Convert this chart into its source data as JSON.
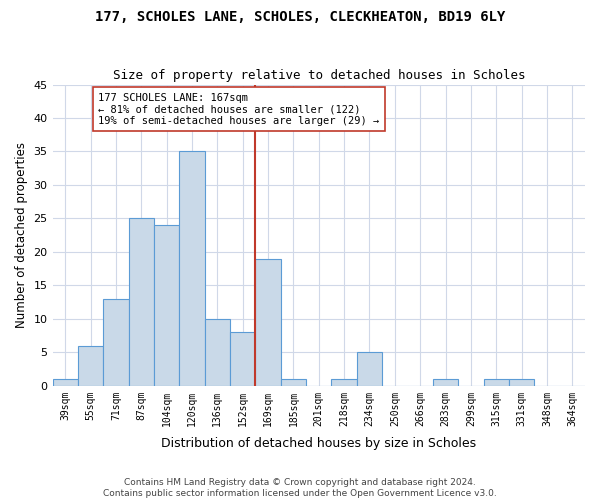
{
  "title1": "177, SCHOLES LANE, SCHOLES, CLECKHEATON, BD19 6LY",
  "title2": "Size of property relative to detached houses in Scholes",
  "xlabel": "Distribution of detached houses by size in Scholes",
  "ylabel": "Number of detached properties",
  "bins": [
    "39sqm",
    "55sqm",
    "71sqm",
    "87sqm",
    "104sqm",
    "120sqm",
    "136sqm",
    "152sqm",
    "169sqm",
    "185sqm",
    "201sqm",
    "218sqm",
    "234sqm",
    "250sqm",
    "266sqm",
    "283sqm",
    "299sqm",
    "315sqm",
    "331sqm",
    "348sqm",
    "364sqm"
  ],
  "values": [
    1,
    6,
    13,
    25,
    24,
    35,
    10,
    8,
    19,
    1,
    0,
    1,
    5,
    0,
    0,
    1,
    0,
    1,
    1,
    0,
    0
  ],
  "bar_color": "#c9d9e8",
  "bar_edge_color": "#5b9bd5",
  "vline_x_index": 8,
  "vline_color": "#c0392b",
  "annotation_text": "177 SCHOLES LANE: 167sqm\n← 81% of detached houses are smaller (122)\n19% of semi-detached houses are larger (29) →",
  "annotation_box_color": "#ffffff",
  "annotation_box_edge_color": "#c0392b",
  "footer1": "Contains HM Land Registry data © Crown copyright and database right 2024.",
  "footer2": "Contains public sector information licensed under the Open Government Licence v3.0.",
  "bg_color": "#ffffff",
  "grid_color": "#d0d8e8",
  "ylim": [
    0,
    45
  ],
  "yticks": [
    0,
    5,
    10,
    15,
    20,
    25,
    30,
    35,
    40,
    45
  ]
}
